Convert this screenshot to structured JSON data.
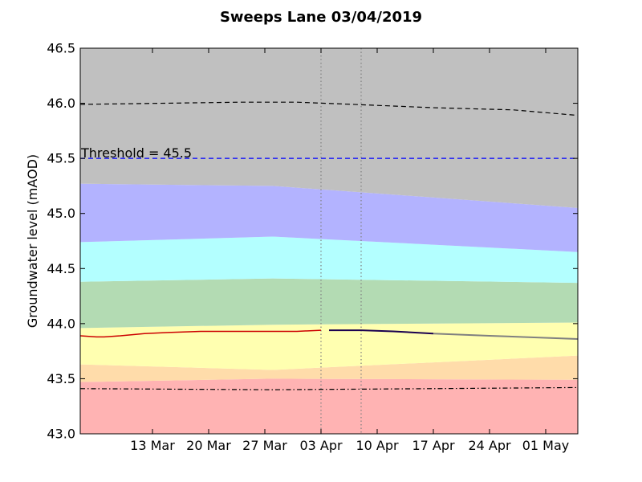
{
  "chart_data": {
    "type": "area",
    "title": "Sweeps Lane 03/04/2019",
    "xlabel": "",
    "ylabel": "Groundwater level (mAOD)",
    "xlim": [
      "2019-03-04",
      "2019-05-05"
    ],
    "ylim": [
      43.0,
      46.5
    ],
    "x_ticks": [
      "2019-03-13",
      "2019-03-20",
      "2019-03-27",
      "2019-04-03",
      "2019-04-10",
      "2019-04-17",
      "2019-04-24",
      "2019-05-01"
    ],
    "x_tick_labels": [
      "13 Mar",
      "20 Mar",
      "27 Mar",
      "03 Apr",
      "10 Apr",
      "17 Apr",
      "24 Apr",
      "01 May"
    ],
    "y_ticks": [
      43.0,
      43.5,
      44.0,
      44.5,
      45.0,
      45.5,
      46.0,
      46.5
    ],
    "y_tick_labels": [
      "43.0",
      "43.5",
      "44.0",
      "44.5",
      "45.0",
      "45.5",
      "46.0",
      "46.5"
    ],
    "band_x": [
      "2019-03-04",
      "2019-03-28",
      "2019-05-05"
    ],
    "bands": [
      {
        "color": "#ffb3b3",
        "upper": [
          43.47,
          43.5,
          43.49
        ]
      },
      {
        "color": "#ffdcaa",
        "upper": [
          43.63,
          43.58,
          43.71
        ]
      },
      {
        "color": "#ffffb0",
        "upper": [
          43.96,
          43.99,
          44.01
        ]
      },
      {
        "color": "#b3dbb3",
        "upper": [
          44.38,
          44.41,
          44.37
        ]
      },
      {
        "color": "#b3ffff",
        "upper": [
          44.74,
          44.79,
          44.65
        ]
      },
      {
        "color": "#b3b3ff",
        "upper": [
          45.27,
          45.25,
          45.05
        ]
      },
      {
        "color": "#c0c0c0",
        "upper": [
          46.5,
          46.5,
          46.5
        ]
      }
    ],
    "series": [
      {
        "style": "observed",
        "color": "#cc0000",
        "x": [
          "2019-03-04",
          "2019-03-06",
          "2019-03-07",
          "2019-03-09",
          "2019-03-12",
          "2019-03-15",
          "2019-03-19",
          "2019-03-23",
          "2019-03-27",
          "2019-03-31",
          "2019-04-03"
        ],
        "y": [
          43.89,
          43.88,
          43.88,
          43.89,
          43.91,
          43.92,
          43.93,
          43.93,
          43.93,
          43.93,
          43.94
        ]
      },
      {
        "style": "forecast",
        "color": "#1a0050",
        "x": [
          "2019-04-04",
          "2019-04-08",
          "2019-04-12",
          "2019-04-17"
        ],
        "y": [
          43.94,
          43.94,
          43.93,
          43.91
        ]
      },
      {
        "style": "forecast-extension",
        "color": "#808080",
        "x": [
          "2019-04-17",
          "2019-04-24",
          "2019-05-05"
        ],
        "y": [
          43.91,
          43.89,
          43.86
        ]
      },
      {
        "style": "upper-dashed",
        "color": "#000000",
        "x": [
          "2019-03-04",
          "2019-03-14",
          "2019-03-24",
          "2019-03-31",
          "2019-04-07",
          "2019-04-17",
          "2019-04-27",
          "2019-05-05"
        ],
        "y": [
          45.99,
          46.0,
          46.01,
          46.01,
          45.99,
          45.96,
          45.94,
          45.89
        ]
      },
      {
        "style": "lower-dashdot",
        "color": "#000000",
        "x": [
          "2019-03-04",
          "2019-03-28",
          "2019-04-17",
          "2019-05-05"
        ],
        "y": [
          43.41,
          43.4,
          43.41,
          43.42
        ]
      }
    ],
    "vlines": [
      "2019-04-03",
      "2019-04-08"
    ],
    "threshold": {
      "value": 45.5,
      "label": "Threshold = 45.5",
      "color": "#0000ff"
    }
  }
}
